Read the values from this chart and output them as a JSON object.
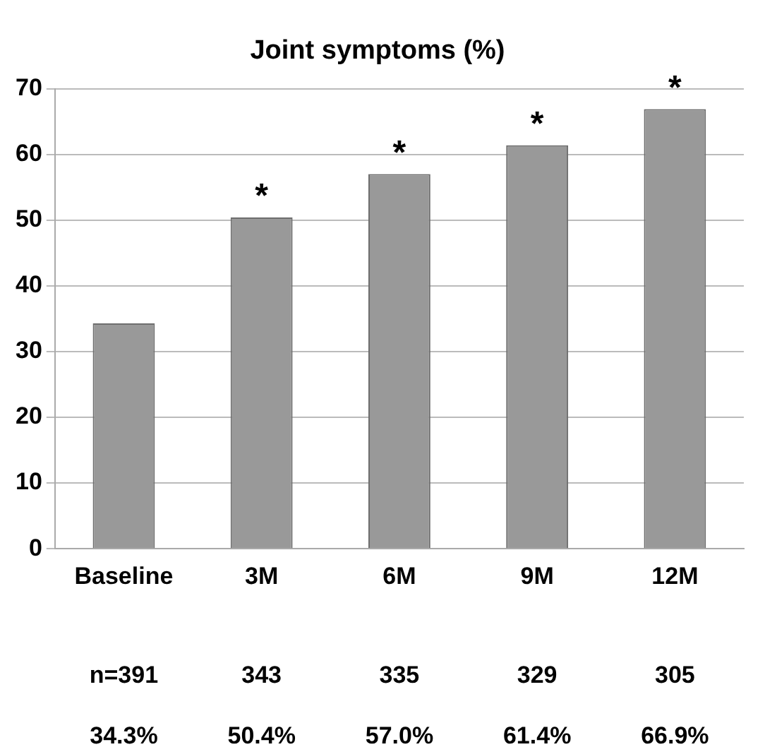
{
  "chart_data": {
    "type": "bar",
    "title": "Joint symptoms (%)",
    "categories": [
      "Baseline",
      "3M",
      "6M",
      "9M",
      "12M"
    ],
    "values": [
      34.3,
      50.4,
      57.0,
      61.4,
      66.9
    ],
    "value_labels": [
      "34.3%",
      "50.4%",
      "57.0%",
      "61.4%",
      "66.9%"
    ],
    "color": "#999999",
    "ylim": [
      0,
      70
    ],
    "yticks": [
      0,
      10,
      20,
      30,
      40,
      50,
      60,
      70
    ],
    "grid": "y",
    "legend": false,
    "annotations": [
      {
        "text": "*",
        "x": "3M",
        "y": 50.4
      },
      {
        "text": "*",
        "x": "6M",
        "y": 57.0
      },
      {
        "text": "*",
        "x": "9M",
        "y": 61.4
      },
      {
        "text": "*",
        "x": "12M",
        "y": 66.9
      },
      "n=391",
      "343",
      "335",
      "329",
      "305"
    ]
  }
}
